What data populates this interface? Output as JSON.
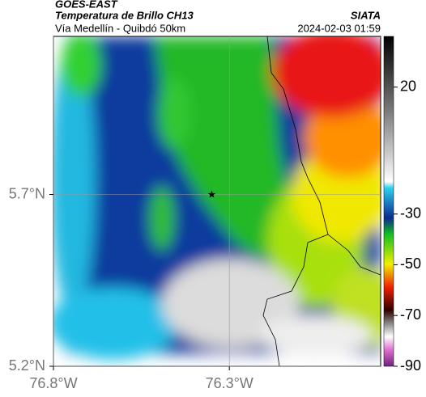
{
  "header": {
    "title": "GOES-EAST",
    "subtitle": "Temperatura de Brillo CH13",
    "region": "Vía Medellín - Quibdó 50km",
    "source": "SIATA",
    "timestamp": "2024-02-03 01:59"
  },
  "map": {
    "xlim": [
      -76.8,
      -75.87
    ],
    "ylim": [
      5.2,
      6.16
    ],
    "xticks": [
      {
        "value": -76.8,
        "label": "76.8°W"
      },
      {
        "value": -76.3,
        "label": "76.3°W"
      }
    ],
    "yticks": [
      {
        "value": 5.7,
        "label": "5.7°N"
      },
      {
        "value": 5.2,
        "label": "5.2°N"
      }
    ],
    "marker": {
      "lon": -76.35,
      "lat": 5.7
    }
  },
  "colorbar": {
    "lim": [
      -90,
      40
    ],
    "ticks": [
      20,
      -30,
      -50,
      -70,
      -90
    ]
  }
}
